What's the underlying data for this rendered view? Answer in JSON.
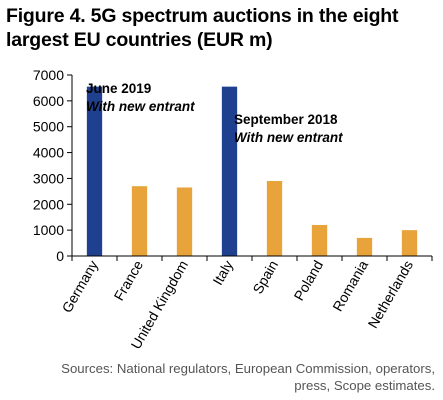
{
  "title_line1": "Figure 4. 5G spectrum auctions in the eight",
  "title_line2": "largest EU countries (EUR m)",
  "source_line1": "Sources: National regulators, European Commission, operators,",
  "source_line2": "press, Scope estimates.",
  "chart_data": {
    "type": "bar",
    "title": "Figure 4. 5G spectrum auctions in the eight largest EU countries (EUR m)",
    "xlabel": "",
    "ylabel": "",
    "categories": [
      "Germany",
      "France",
      "United Kingdom",
      "Italy",
      "Spain",
      "Poland",
      "Romania",
      "Netherlands"
    ],
    "values": [
      6550,
      2700,
      2650,
      6550,
      2900,
      1200,
      700,
      1000
    ],
    "bar_colors": [
      "#1f3f8f",
      "#e8a33a",
      "#e8a33a",
      "#1f3f8f",
      "#e8a33a",
      "#e8a33a",
      "#e8a33a",
      "#e8a33a"
    ],
    "ylim": [
      0,
      7000
    ],
    "yticks": [
      0,
      1000,
      2000,
      3000,
      4000,
      5000,
      6000,
      7000
    ],
    "grid": false,
    "annotations": [
      {
        "line1": "June 2019",
        "line2": "With new entrant"
      },
      {
        "line1": "September 2018",
        "line2": "With new entrant"
      }
    ]
  }
}
